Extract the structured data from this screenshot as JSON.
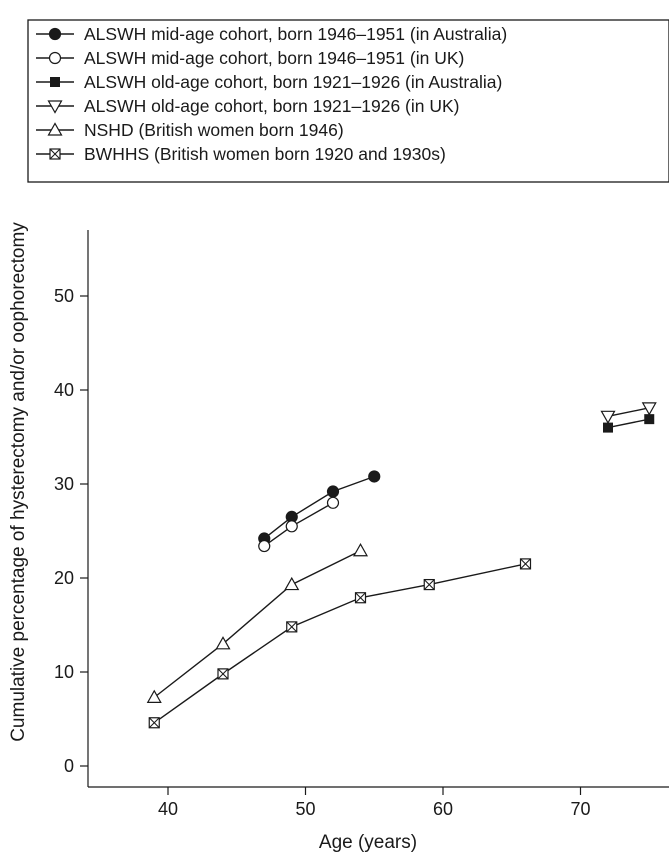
{
  "chart_data": {
    "type": "line",
    "title": "",
    "xlabel": "Age (years)",
    "ylabel": "Cumulative percentage of hysterectomy and/or oophorectomy",
    "xlim": [
      35,
      75.6
    ],
    "ylim": [
      -2,
      57
    ],
    "xticks": [
      40,
      50,
      60,
      70
    ],
    "yticks": [
      0,
      10,
      20,
      30,
      40,
      50
    ],
    "grid": false,
    "legend_position": "top-left",
    "series": [
      {
        "name": "ALSWH mid-age cohort, born 1946–1951 (in Australia)",
        "marker": "filled-circle",
        "x": [
          47,
          49,
          52,
          55
        ],
        "y": [
          24.2,
          26.5,
          29.2,
          30.8
        ]
      },
      {
        "name": "ALSWH mid-age cohort, born 1946–1951 (in UK)",
        "marker": "open-circle",
        "x": [
          47,
          49,
          52
        ],
        "y": [
          23.4,
          25.5,
          28
        ]
      },
      {
        "name": "ALSWH old-age cohort, born 1921–1926 (in Australia)",
        "marker": "filled-square",
        "x": [
          72,
          75
        ],
        "y": [
          36,
          36.9
        ]
      },
      {
        "name": "ALSWH old-age cohort, born 1921–1926 (in UK)",
        "marker": "open-triangle-down",
        "x": [
          72,
          75
        ],
        "y": [
          37.2,
          38.1
        ]
      },
      {
        "name": "NSHD (British women born 1946)",
        "marker": "open-triangle-up",
        "x": [
          39,
          44,
          49,
          54
        ],
        "y": [
          7.3,
          13,
          19.3,
          22.9
        ]
      },
      {
        "name": "BWHHS (British women born 1920 and 1930s)",
        "marker": "crossed-square",
        "x": [
          39,
          44,
          49,
          54,
          59,
          66
        ],
        "y": [
          4.6,
          9.8,
          14.8,
          17.9,
          19.3,
          21.5
        ]
      }
    ]
  }
}
